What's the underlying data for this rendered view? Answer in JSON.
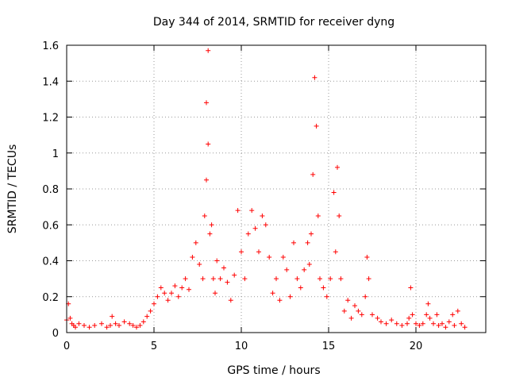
{
  "chart_data": {
    "type": "scatter",
    "title": "Day 344 of 2014, SRMTID for receiver dyng",
    "xlabel": "GPS time / hours",
    "ylabel": "SRMTID / TECUs",
    "xlim": [
      0,
      24
    ],
    "ylim": [
      0,
      1.6
    ],
    "xticks": [
      0,
      5,
      10,
      15,
      20
    ],
    "xtick_labels": [
      "0",
      "5",
      "10",
      "15",
      "20"
    ],
    "yticks": [
      0,
      0.2,
      0.4,
      0.6,
      0.8,
      1,
      1.2,
      1.4,
      1.6
    ],
    "ytick_labels": [
      "0",
      "0.2",
      "0.4",
      "0.6",
      "0.8",
      "1",
      "1.2",
      "1.4",
      "1.6"
    ],
    "grid": true,
    "marker": "+",
    "color": "#ff0000",
    "series": [
      {
        "name": "SRMTID",
        "x": [
          0.0,
          0.1,
          0.2,
          0.3,
          0.4,
          0.5,
          0.7,
          1.0,
          1.3,
          1.6,
          2.0,
          2.3,
          2.5,
          2.6,
          2.8,
          3.0,
          3.3,
          3.6,
          3.8,
          4.0,
          4.2,
          4.4,
          4.6,
          4.8,
          5.0,
          5.2,
          5.4,
          5.6,
          5.8,
          6.0,
          6.2,
          6.4,
          6.6,
          6.8,
          7.0,
          7.2,
          7.4,
          7.6,
          7.8,
          7.9,
          8.0,
          8.0,
          8.1,
          8.1,
          8.2,
          8.3,
          8.4,
          8.5,
          8.6,
          8.8,
          9.0,
          9.2,
          9.4,
          9.6,
          9.8,
          10.0,
          10.2,
          10.4,
          10.6,
          10.8,
          11.0,
          11.2,
          11.4,
          11.6,
          11.8,
          12.0,
          12.2,
          12.4,
          12.6,
          12.8,
          13.0,
          13.2,
          13.4,
          13.6,
          13.8,
          13.9,
          14.0,
          14.1,
          14.2,
          14.3,
          14.4,
          14.5,
          14.7,
          14.9,
          15.1,
          15.3,
          15.4,
          15.5,
          15.6,
          15.7,
          15.9,
          16.1,
          16.3,
          16.5,
          16.7,
          16.9,
          17.1,
          17.2,
          17.3,
          17.5,
          17.8,
          18.0,
          18.3,
          18.6,
          18.9,
          19.2,
          19.5,
          19.6,
          19.7,
          19.8,
          20.0,
          20.2,
          20.4,
          20.6,
          20.7,
          20.8,
          21.0,
          21.2,
          21.3,
          21.5,
          21.7,
          21.9,
          22.1,
          22.2,
          22.4,
          22.6,
          22.8
        ],
        "y": [
          0.07,
          0.16,
          0.08,
          0.05,
          0.04,
          0.03,
          0.05,
          0.04,
          0.03,
          0.04,
          0.05,
          0.03,
          0.04,
          0.09,
          0.05,
          0.04,
          0.06,
          0.05,
          0.04,
          0.03,
          0.04,
          0.06,
          0.09,
          0.12,
          0.16,
          0.2,
          0.25,
          0.22,
          0.18,
          0.22,
          0.26,
          0.2,
          0.25,
          0.3,
          0.24,
          0.42,
          0.5,
          0.38,
          0.3,
          0.65,
          0.85,
          1.28,
          1.57,
          1.05,
          0.55,
          0.6,
          0.3,
          0.22,
          0.4,
          0.3,
          0.36,
          0.28,
          0.18,
          0.32,
          0.68,
          0.45,
          0.3,
          0.55,
          0.68,
          0.58,
          0.45,
          0.65,
          0.6,
          0.42,
          0.22,
          0.3,
          0.18,
          0.42,
          0.35,
          0.2,
          0.5,
          0.3,
          0.25,
          0.35,
          0.5,
          0.38,
          0.55,
          0.88,
          1.42,
          1.15,
          0.65,
          0.3,
          0.25,
          0.2,
          0.3,
          0.78,
          0.45,
          0.92,
          0.65,
          0.3,
          0.12,
          0.18,
          0.08,
          0.15,
          0.12,
          0.1,
          0.2,
          0.42,
          0.3,
          0.1,
          0.08,
          0.06,
          0.05,
          0.07,
          0.05,
          0.04,
          0.05,
          0.08,
          0.25,
          0.1,
          0.05,
          0.04,
          0.05,
          0.1,
          0.16,
          0.08,
          0.05,
          0.1,
          0.04,
          0.05,
          0.03,
          0.06,
          0.1,
          0.04,
          0.12,
          0.05,
          0.03
        ]
      }
    ]
  }
}
